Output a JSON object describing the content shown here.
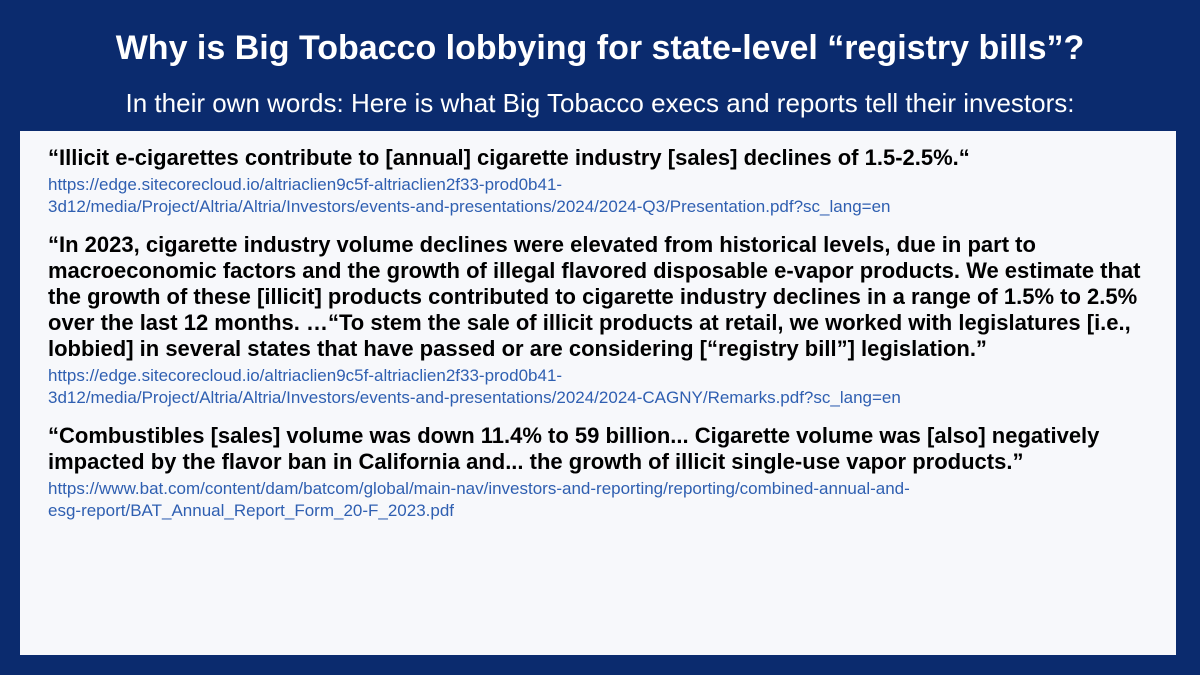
{
  "slide": {
    "title": "Why is Big Tobacco lobbying for state-level “registry bills”?",
    "subtitle": "In their own words:  Here is what Big Tobacco execs and reports tell their investors:",
    "background_color": "#0b2b6e",
    "panel_color": "#f7f8fb",
    "link_color": "#2f5fb1"
  },
  "quotes": [
    {
      "text": "“Illicit e-cigarettes contribute to [annual] cigarette industry [sales] declines of 1.5-2.5%.“",
      "link_line1": "https://edge.sitecorecloud.io/altriaclien9c5f-altriaclien2f33-prod0b41-",
      "link_line2": "3d12/media/Project/Altria/Altria/Investors/events-and-presentations/2024/2024-Q3/Presentation.pdf?sc_lang=en"
    },
    {
      "text": "“In 2023, cigarette industry volume declines were elevated from historical levels, due in part to macroeconomic factors and the growth of illegal flavored disposable e-vapor products.  We estimate that the growth of these [illicit] products contributed to cigarette industry declines in a range of 1.5% to 2.5% over the last 12 months. …“To stem the sale of illicit products at retail, we worked with legislatures [i.e., lobbied] in several states that have passed or are considering [“registry bill”] legislation.”",
      "link_line1": "https://edge.sitecorecloud.io/altriaclien9c5f-altriaclien2f33-prod0b41-",
      "link_line2": "3d12/media/Project/Altria/Altria/Investors/events-and-presentations/2024/2024-CAGNY/Remarks.pdf?sc_lang=en"
    },
    {
      "text": "“Combustibles [sales] volume was down 11.4% to 59 billion... Cigarette volume was [also] negatively impacted by the flavor ban in California and... the growth of illicit single-use vapor products.”",
      "link_line1": "https://www.bat.com/content/dam/batcom/global/main-nav/investors-and-reporting/reporting/combined-annual-and-",
      "link_line2": "esg-report/BAT_Annual_Report_Form_20-F_2023.pdf"
    }
  ]
}
